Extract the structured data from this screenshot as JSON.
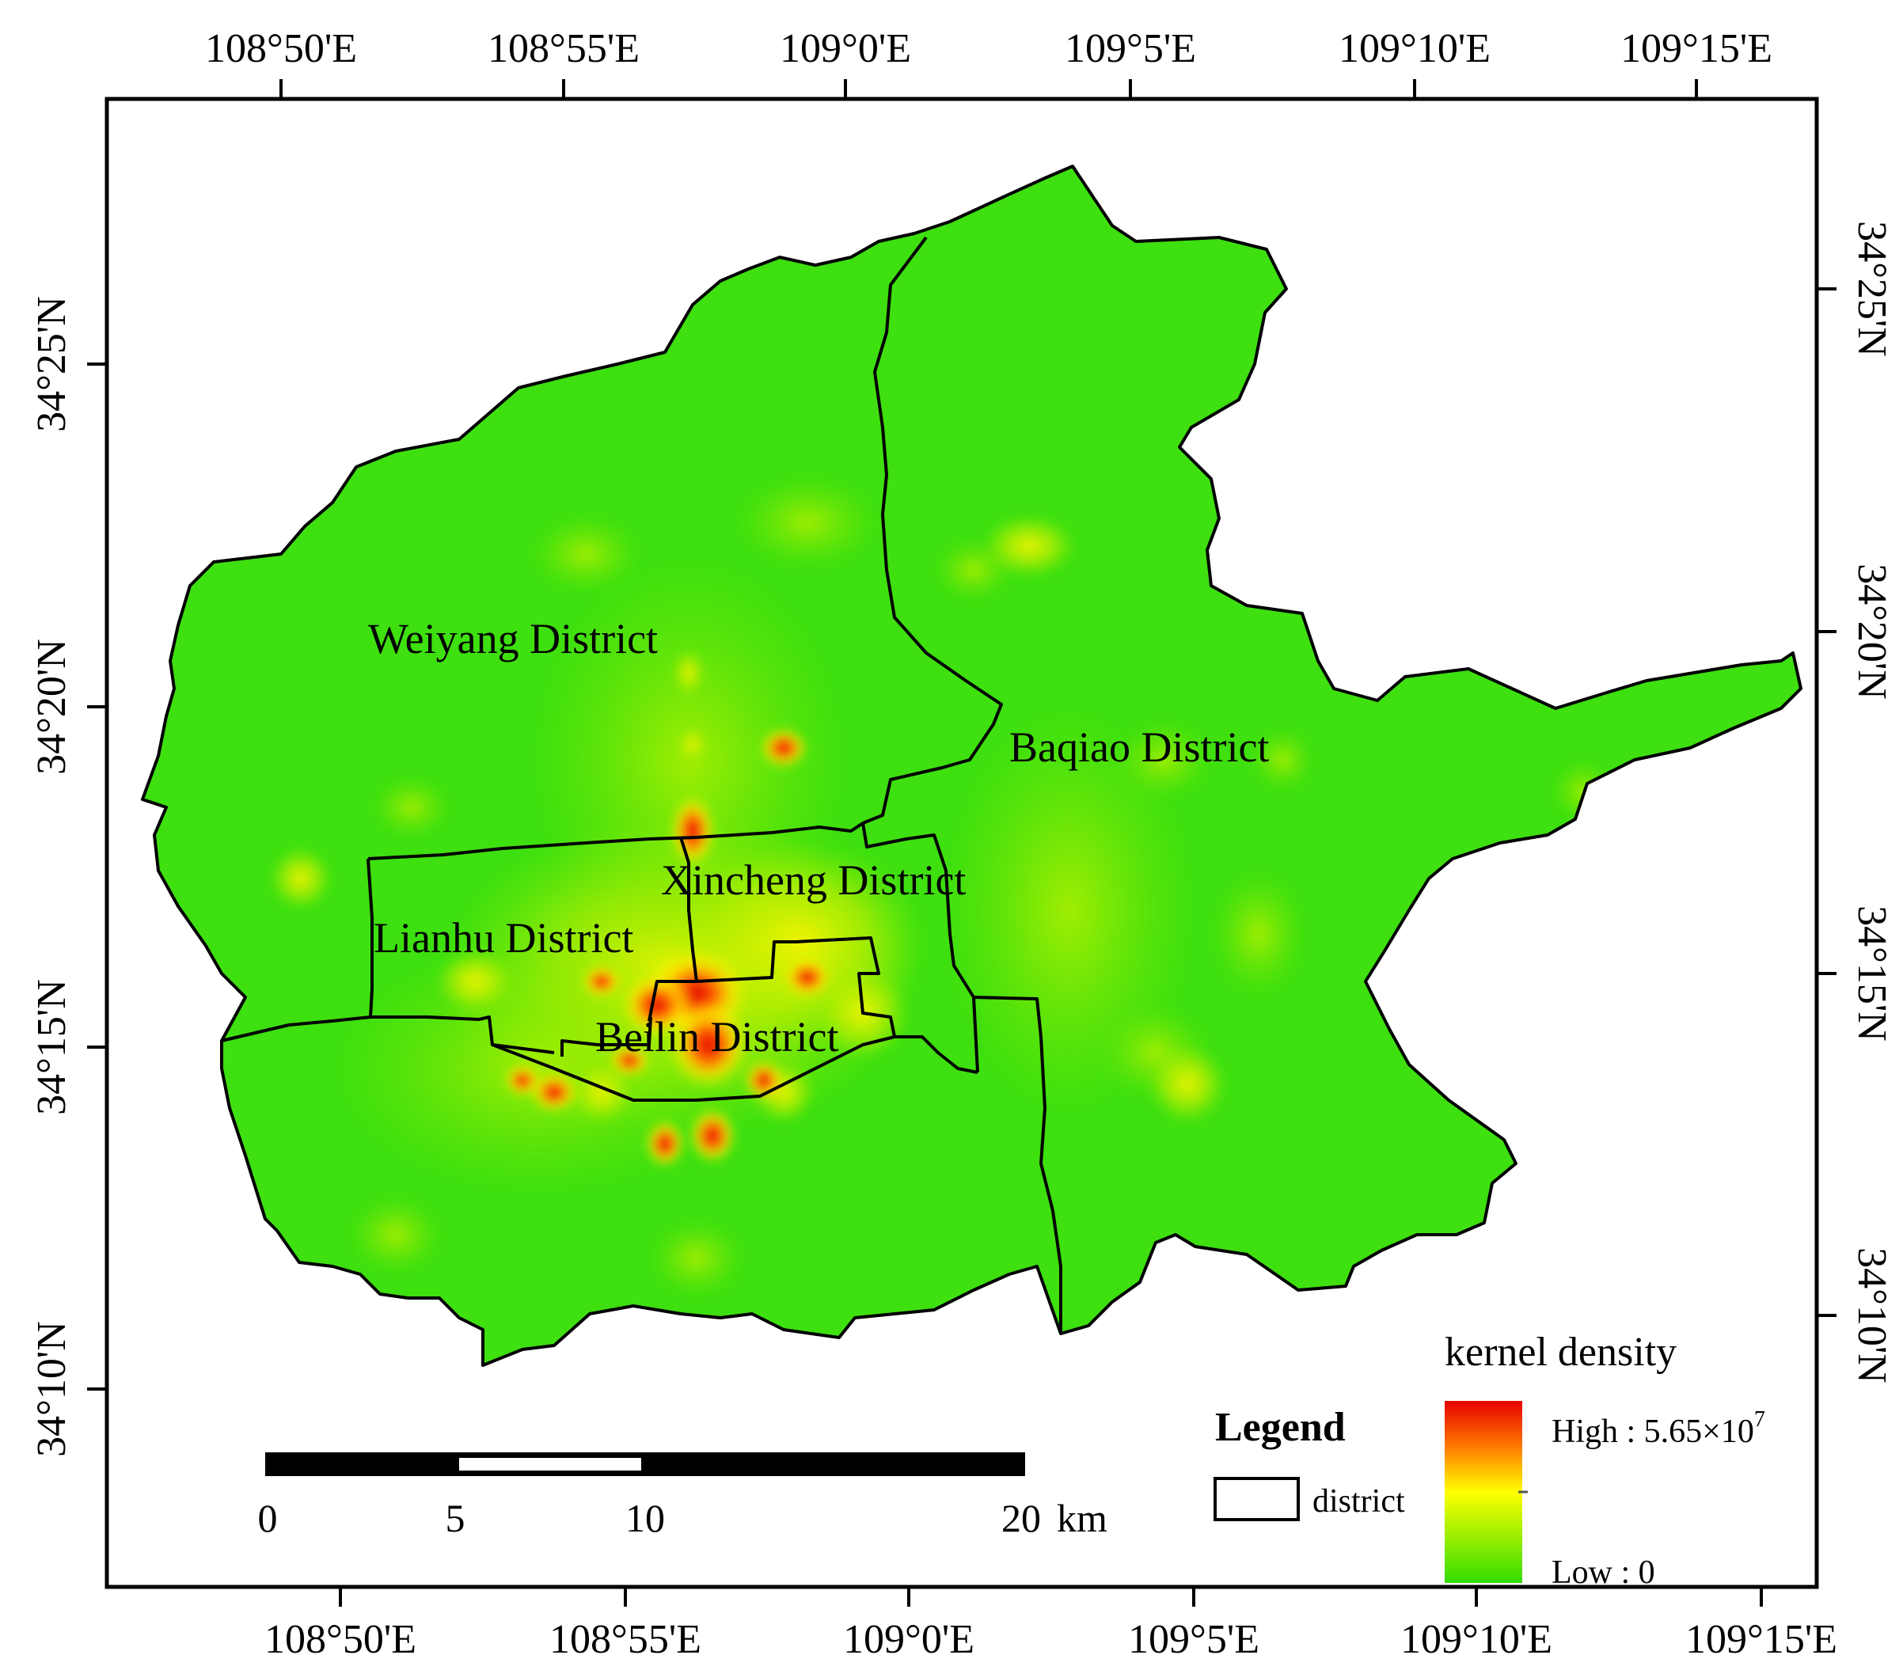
{
  "map": {
    "lon_labels": [
      "108°50'E",
      "108°55'E",
      "109°0'E",
      "109°5'E",
      "109°10'E",
      "109°15'E"
    ],
    "lat_labels": [
      "34°25'N",
      "34°20'N",
      "34°15'N",
      "34°10'N"
    ],
    "districts": {
      "weiyang": "Weiyang District",
      "baqiao": "Baqiao District",
      "xincheng": "Xincheng District",
      "lianhu": "Lianhu District",
      "beilin": "Beilin District"
    }
  },
  "legend": {
    "title": "Legend",
    "district_label": "district",
    "kd_title": "kernel density",
    "high_label": "High : 5.65×10",
    "high_exponent": "7",
    "low_label": "Low : 0",
    "colors": {
      "high": "#e60000",
      "mid": "#ffff00",
      "low": "#33dd00"
    }
  },
  "scale_bar": {
    "labels": [
      "0",
      "5",
      "10",
      "20"
    ],
    "unit": "km"
  },
  "colors": {
    "base": "#3ee00f",
    "border": "#000000"
  }
}
